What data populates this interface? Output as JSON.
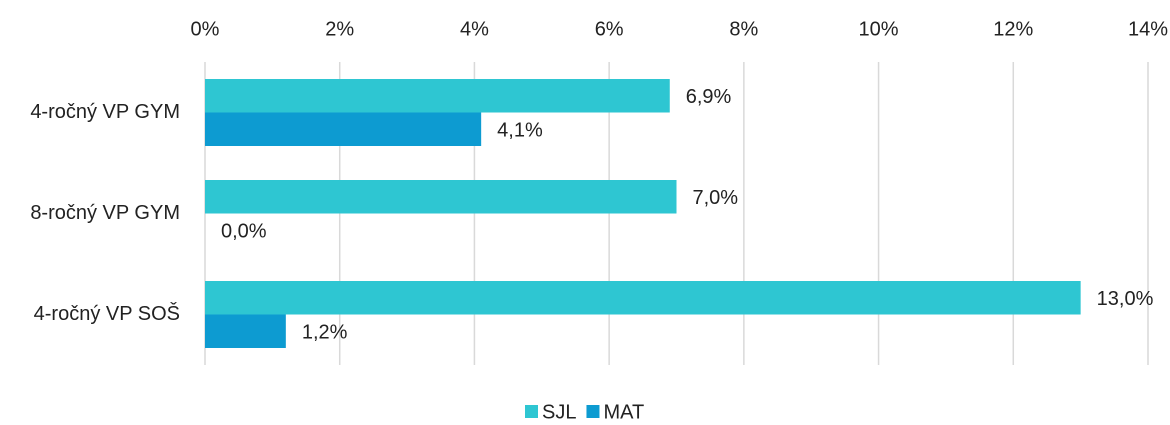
{
  "chart_data": {
    "type": "barh",
    "categories": [
      "4-ročný VP GYM",
      "8-ročný VP GYM",
      "4-ročný VP SOŠ"
    ],
    "series": [
      {
        "name": "SJL",
        "color": "#2ec6d2",
        "values": [
          6.9,
          7.0,
          13.0
        ],
        "value_labels": [
          "6,9%",
          "7,0%",
          "13,0%"
        ]
      },
      {
        "name": "MAT",
        "color": "#0d9bd1",
        "values": [
          4.1,
          0.0,
          1.2
        ],
        "value_labels": [
          "4,1%",
          "0,0%",
          "1,2%"
        ]
      }
    ],
    "xlim": [
      0,
      14
    ],
    "xticks": [
      {
        "value": 0,
        "label": "0%"
      },
      {
        "value": 2,
        "label": "2%"
      },
      {
        "value": 4,
        "label": "4%"
      },
      {
        "value": 6,
        "label": "6%"
      },
      {
        "value": 8,
        "label": "8%"
      },
      {
        "value": 10,
        "label": "10%"
      },
      {
        "value": 12,
        "label": "12%"
      },
      {
        "value": 14,
        "label": "14%"
      }
    ],
    "grid": true,
    "legend": "bottom"
  }
}
